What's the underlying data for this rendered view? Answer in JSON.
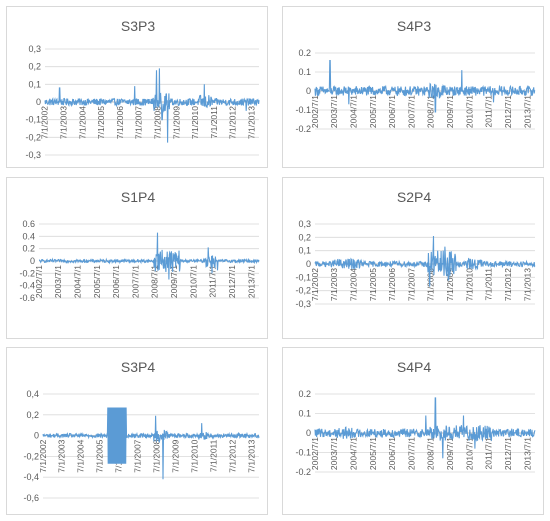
{
  "colors": {
    "series": "#5b9bd5",
    "axis": "#d9d9d9",
    "grid": "#d9d9d9",
    "text": "#595959"
  },
  "chart_data": [
    {
      "type": "line",
      "title": "S3P3",
      "ylim": [
        -0.3,
        0.3
      ],
      "ytick_labels": [
        "0,3",
        "0,2",
        "0,1",
        "0",
        "-0,1",
        "-0,2",
        "-0,3"
      ],
      "xtick_labels": [
        "7/1/2002",
        "7/1/2003",
        "7/1/2004",
        "7/1/2005",
        "7/1/2006",
        "7/1/2007",
        "7/1/2008",
        "7/1/2009",
        "7/1/2010",
        "7/1/2011",
        "7/1/2012",
        "7/1/2013"
      ],
      "x_range": [
        2002.5,
        2014.2
      ],
      "noise": {
        "base": 0.02,
        "bursts": [
          [
            2008.4,
            2009.3,
            0.05
          ],
          [
            2010.9,
            2011.6,
            0.04
          ]
        ]
      },
      "spikes": [
        [
          2003.3,
          0.08
        ],
        [
          2007.4,
          0.09
        ],
        [
          2008.6,
          0.18
        ],
        [
          2008.75,
          0.19
        ],
        [
          2008.9,
          -0.1
        ],
        [
          2009.2,
          -0.23
        ],
        [
          2011.2,
          0.1
        ],
        [
          2013.5,
          -0.05
        ]
      ]
    },
    {
      "type": "line",
      "title": "S4P3",
      "ylim": [
        -0.2,
        0.2
      ],
      "ytick_labels": [
        "0.2",
        "0.1",
        "0",
        "-0.1",
        "-0.2"
      ],
      "xtick_labels": [
        "2002/7/1",
        "2003/7/1",
        "2004/7/1",
        "2005/7/1",
        "2006/7/1",
        "2007/7/1",
        "2008/7/1",
        "2009/7/1",
        "2010/7/1",
        "2011/7/1",
        "2012/7/1",
        "2013/7/1"
      ],
      "x_range": [
        2002.5,
        2014.2
      ],
      "noise": {
        "base": 0.025,
        "bursts": [
          [
            2008.5,
            2009.5,
            0.04
          ]
        ]
      },
      "spikes": [
        [
          2003.3,
          0.16
        ],
        [
          2004.3,
          -0.07
        ],
        [
          2008.9,
          -0.11
        ],
        [
          2010.3,
          0.11
        ],
        [
          2012.0,
          -0.06
        ]
      ]
    },
    {
      "type": "line",
      "title": "S1P4",
      "ylim": [
        -0.6,
        0.6
      ],
      "ytick_labels": [
        "0.6",
        "0.4",
        "0.2",
        "0",
        "-0.2",
        "-0.4",
        "-0.6"
      ],
      "xtick_labels": [
        "2002/7/1",
        "2003/7/1",
        "2004/7/1",
        "2005/7/1",
        "2006/7/1",
        "2007/7/1",
        "2008/7/1",
        "2009/7/1",
        "2010/7/1",
        "2011/7/1",
        "2012/7/1",
        "2013/7/1"
      ],
      "x_range": [
        2002.5,
        2014.2
      ],
      "noise": {
        "base": 0.025,
        "bursts": [
          [
            2008.6,
            2010.0,
            0.18
          ],
          [
            2011.3,
            2011.9,
            0.12
          ]
        ]
      },
      "spikes": [
        [
          2008.8,
          0.46
        ],
        [
          2009.4,
          -0.3
        ],
        [
          2011.5,
          0.22
        ],
        [
          2011.7,
          -0.2
        ],
        [
          2012.0,
          -0.15
        ]
      ]
    },
    {
      "type": "line",
      "title": "S2P4",
      "ylim": [
        -0.3,
        0.3
      ],
      "ytick_labels": [
        "0,3",
        "0,2",
        "0,1",
        "0",
        "-0,1",
        "-0,2",
        "-0,3"
      ],
      "xtick_labels": [
        "7/1/2002",
        "7/1/2003",
        "7/1/2004",
        "7/1/2005",
        "7/1/2006",
        "7/1/2007",
        "7/1/2008",
        "7/1/2009",
        "7/1/2010",
        "7/1/2011",
        "7/1/2012",
        "7/1/2013"
      ],
      "x_range": [
        2002.5,
        2014.2
      ],
      "noise": {
        "base": 0.02,
        "bursts": [
          [
            2003.5,
            2005.0,
            0.04
          ],
          [
            2008.5,
            2010.0,
            0.1
          ],
          [
            2010.5,
            2011.5,
            0.04
          ]
        ]
      },
      "spikes": [
        [
          2008.8,
          0.21
        ],
        [
          2008.6,
          -0.17
        ],
        [
          2009.4,
          0.13
        ],
        [
          2009.6,
          -0.12
        ]
      ]
    },
    {
      "type": "line",
      "title": "S3P4",
      "ylim": [
        -0.6,
        0.4
      ],
      "ytick_labels": [
        "0,4",
        "0,2",
        "0",
        "-0,2",
        "-0,4",
        "-0,6"
      ],
      "xtick_labels": [
        "7/1/2002",
        "7/1/2003",
        "7/1/2004",
        "7/1/2005",
        "7/1/2006",
        "7/1/2007",
        "7/1/2008",
        "7/1/2009",
        "7/1/2010",
        "7/1/2011",
        "7/1/2012",
        "7/1/2013"
      ],
      "x_range": [
        2002.5,
        2014.2
      ],
      "noise": {
        "base": 0.02,
        "bursts": [
          [
            2008.5,
            2009.3,
            0.06
          ],
          [
            2010.9,
            2011.4,
            0.04
          ]
        ]
      },
      "blocks": [
        [
          2006.0,
          2007.0,
          0.27,
          -0.27
        ]
      ],
      "spikes": [
        [
          2008.6,
          0.19
        ],
        [
          2009.0,
          -0.42
        ],
        [
          2011.1,
          0.12
        ]
      ]
    },
    {
      "type": "line",
      "title": "S4P4",
      "ylim": [
        -0.2,
        0.2
      ],
      "ytick_labels": [
        "0.2",
        "0.1",
        "0",
        "-0.1",
        "-0.2"
      ],
      "xtick_labels": [
        "2002/7/1",
        "2003/7/1",
        "2004/7/1",
        "2005/7/1",
        "2006/7/1",
        "2007/7/1",
        "2008/7/1",
        "2009/7/1",
        "2010/7/1",
        "2011/7/1",
        "2012/7/1",
        "2013/7/1"
      ],
      "x_range": [
        2002.5,
        2014.2
      ],
      "noise": {
        "base": 0.022,
        "bursts": [
          [
            2003.5,
            2004.5,
            0.03
          ],
          [
            2008.6,
            2012.0,
            0.04
          ]
        ]
      },
      "spikes": [
        [
          2008.4,
          0.09
        ],
        [
          2008.9,
          0.18
        ],
        [
          2009.3,
          -0.13
        ],
        [
          2010.4,
          0.09
        ],
        [
          2011.0,
          -0.08
        ]
      ]
    }
  ]
}
